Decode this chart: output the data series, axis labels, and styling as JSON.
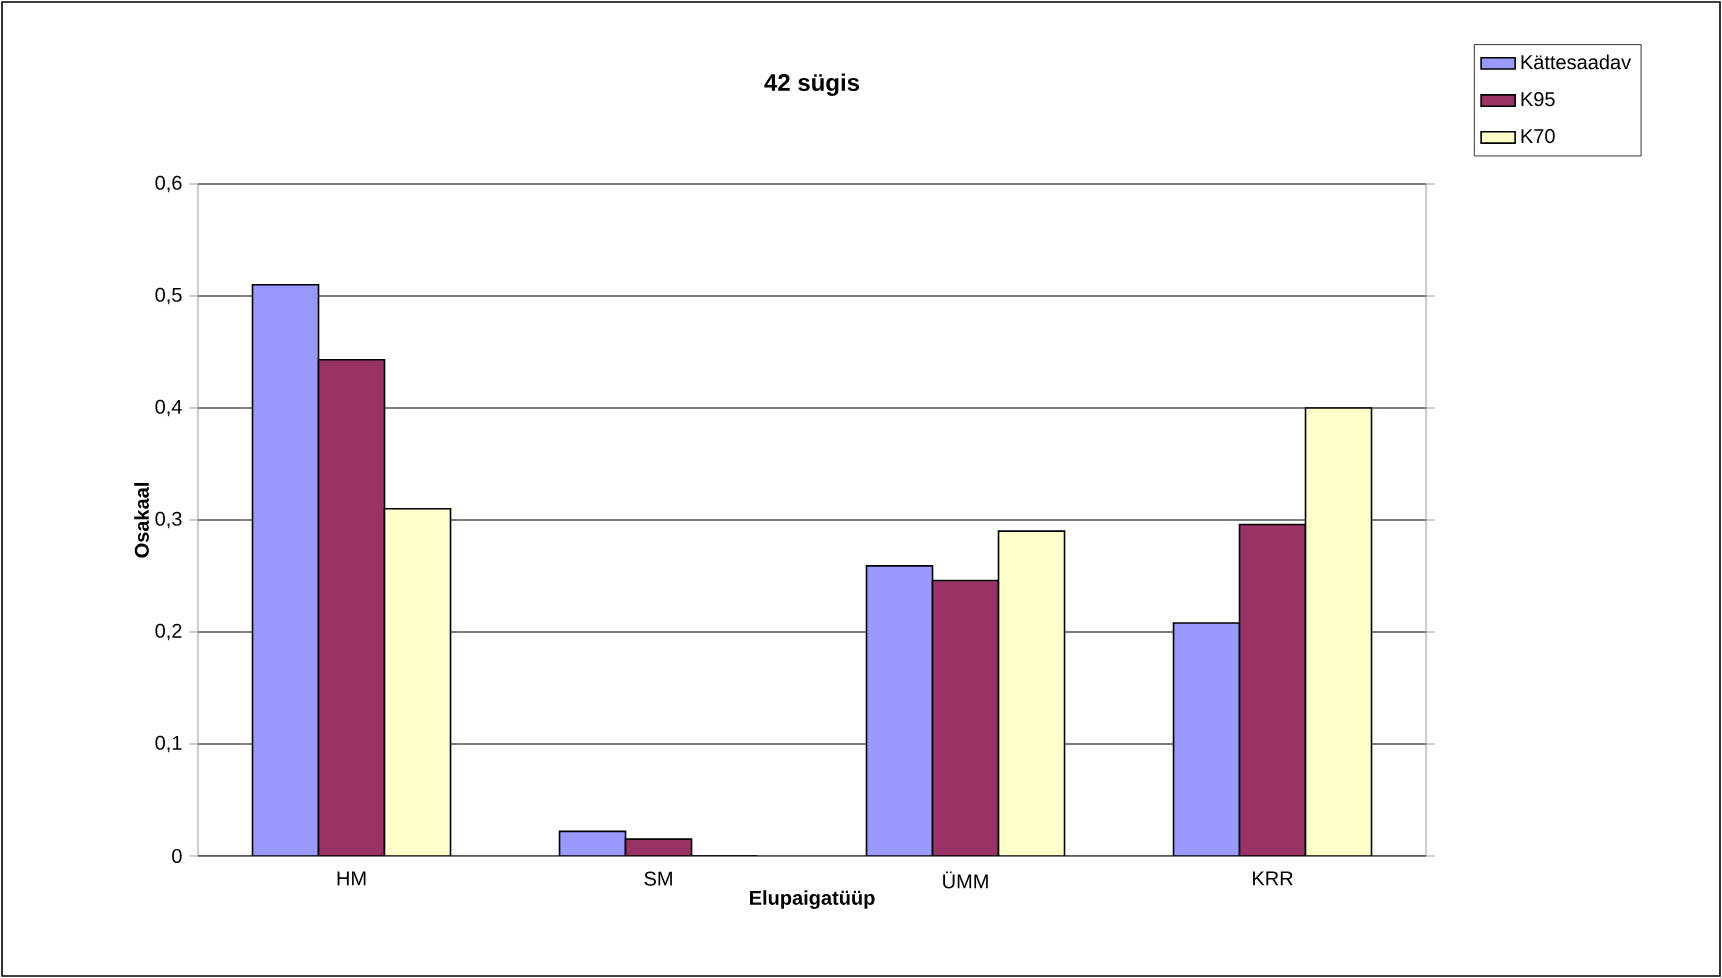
{
  "chart_data": {
    "type": "bar",
    "title": "42 sügis",
    "xlabel": "Elupaigatüüp",
    "ylabel": "Osakaal",
    "categories": [
      "HM",
      "SM",
      "ÜMM",
      "KRR"
    ],
    "series": [
      {
        "name": "Kättesaadav",
        "color": "#9999ff",
        "values": [
          0.51,
          0.022,
          0.259,
          0.208
        ]
      },
      {
        "name": "K95",
        "color": "#993366",
        "values": [
          0.443,
          0.015,
          0.246,
          0.296
        ]
      },
      {
        "name": "K70",
        "color": "#ffffcc",
        "values": [
          0.31,
          0,
          0.29,
          0.4
        ]
      }
    ],
    "ylim": [
      0,
      0.6
    ],
    "yticks": [
      {
        "value": 0,
        "label": "0"
      },
      {
        "value": 0.1,
        "label": "0,1"
      },
      {
        "value": 0.2,
        "label": "0,2"
      },
      {
        "value": 0.3,
        "label": "0,3"
      },
      {
        "value": 0.4,
        "label": "0,4"
      },
      {
        "value": 0.5,
        "label": "0,5"
      },
      {
        "value": 0.6,
        "label": "0,6"
      }
    ],
    "grid": "y",
    "legend": "top right"
  }
}
